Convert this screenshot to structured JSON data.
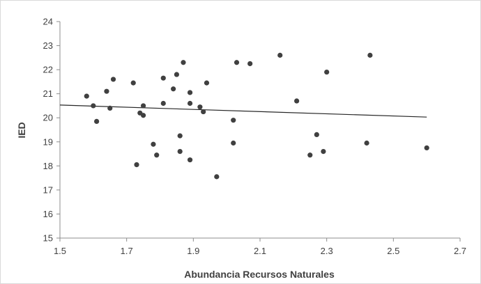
{
  "chart_data": {
    "type": "scatter",
    "title": "",
    "xlabel": "Abundancia Recursos Naturales",
    "ylabel": "IED",
    "xlim": [
      1.5,
      2.7
    ],
    "ylim": [
      15,
      24
    ],
    "x_ticks": [
      "1.5",
      "1.7",
      "1.9",
      "2.1",
      "2.3",
      "2.5",
      "2.7"
    ],
    "y_ticks": [
      "15",
      "16",
      "17",
      "18",
      "19",
      "20",
      "21",
      "22",
      "23",
      "24"
    ],
    "grid": false,
    "legend": "none",
    "colors": {
      "points": "#404040",
      "trendline": "#262626",
      "axis": "#8c8c8c",
      "frame": "#d9d9d9"
    },
    "series": [
      {
        "points": [
          {
            "x": 1.58,
            "y": 20.9
          },
          {
            "x": 1.6,
            "y": 20.5
          },
          {
            "x": 1.61,
            "y": 19.85
          },
          {
            "x": 1.64,
            "y": 21.1
          },
          {
            "x": 1.65,
            "y": 20.4
          },
          {
            "x": 1.66,
            "y": 21.6
          },
          {
            "x": 1.72,
            "y": 21.45
          },
          {
            "x": 1.73,
            "y": 18.05
          },
          {
            "x": 1.74,
            "y": 20.2
          },
          {
            "x": 1.75,
            "y": 20.1
          },
          {
            "x": 1.75,
            "y": 20.5
          },
          {
            "x": 1.78,
            "y": 18.9
          },
          {
            "x": 1.79,
            "y": 18.45
          },
          {
            "x": 1.81,
            "y": 20.6
          },
          {
            "x": 1.81,
            "y": 21.65
          },
          {
            "x": 1.84,
            "y": 21.2
          },
          {
            "x": 1.85,
            "y": 21.8
          },
          {
            "x": 1.86,
            "y": 18.6
          },
          {
            "x": 1.86,
            "y": 19.25
          },
          {
            "x": 1.87,
            "y": 22.3
          },
          {
            "x": 1.89,
            "y": 21.05
          },
          {
            "x": 1.89,
            "y": 20.6
          },
          {
            "x": 1.89,
            "y": 18.25
          },
          {
            "x": 1.92,
            "y": 20.45
          },
          {
            "x": 1.93,
            "y": 20.25
          },
          {
            "x": 1.94,
            "y": 21.45
          },
          {
            "x": 1.97,
            "y": 17.55
          },
          {
            "x": 2.02,
            "y": 19.9
          },
          {
            "x": 2.02,
            "y": 18.95
          },
          {
            "x": 2.03,
            "y": 22.3
          },
          {
            "x": 2.07,
            "y": 22.25
          },
          {
            "x": 2.16,
            "y": 22.6
          },
          {
            "x": 2.21,
            "y": 20.7
          },
          {
            "x": 2.25,
            "y": 18.45
          },
          {
            "x": 2.27,
            "y": 19.3
          },
          {
            "x": 2.29,
            "y": 18.6
          },
          {
            "x": 2.3,
            "y": 21.9
          },
          {
            "x": 2.42,
            "y": 18.95
          },
          {
            "x": 2.43,
            "y": 22.6
          },
          {
            "x": 2.6,
            "y": 18.75
          }
        ]
      }
    ],
    "trendline": {
      "x": [
        1.5,
        2.6
      ],
      "y": [
        20.53,
        20.03
      ]
    }
  }
}
